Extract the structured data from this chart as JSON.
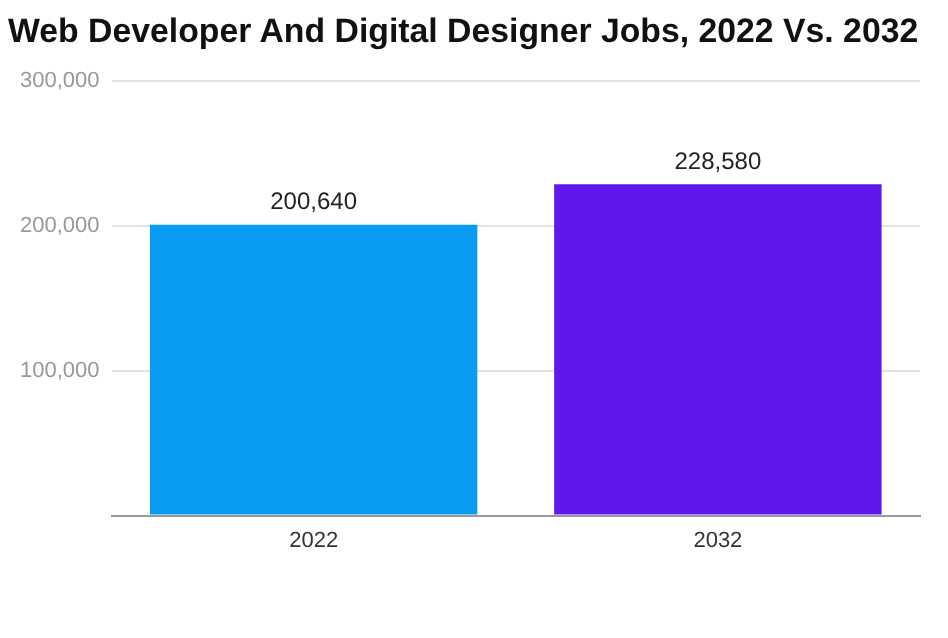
{
  "chart_data": {
    "type": "bar",
    "title": "Web Developer And Digital Designer Jobs, 2022 Vs. 2032",
    "categories": [
      "2022",
      "2032"
    ],
    "values": [
      200640,
      228580
    ],
    "colors": [
      "#0a9cf5",
      "#5f17eb"
    ],
    "value_labels": [
      "200,640",
      "228,580"
    ],
    "ylim": [
      0,
      300000
    ],
    "yticks": [
      {
        "value": 0,
        "label": null
      },
      {
        "value": 100000,
        "label": "100,000"
      },
      {
        "value": 200000,
        "label": "200,000"
      },
      {
        "value": 300000,
        "label": "300,000"
      }
    ],
    "grid": "y",
    "legend": false
  }
}
